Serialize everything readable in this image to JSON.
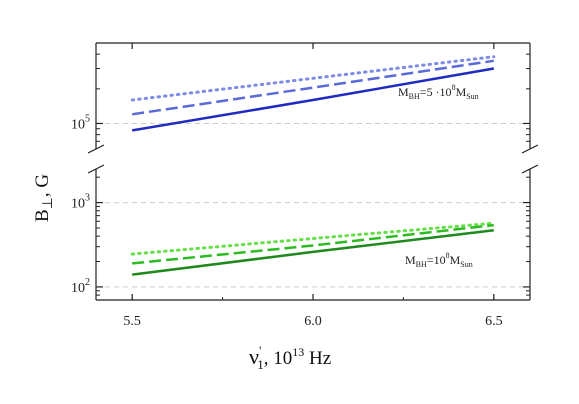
{
  "chart_data": {
    "type": "line",
    "title": "",
    "xlabel": "ν′₁, 10¹³ Hz",
    "xlabel_parts": {
      "main": "ν",
      "prime": "'",
      "sub": "1",
      "rest": ", 10",
      "exp": "13",
      "unit": " Hz"
    },
    "ylabel": "B⊥, G",
    "ylabel_parts": {
      "main": "B",
      "sub": "⊥",
      "rest": ", G"
    },
    "xlim": [
      5.4,
      6.6
    ],
    "x_ticks": [
      {
        "value": 5.5,
        "label": "5.5"
      },
      {
        "value": 6.0,
        "label": "6.0"
      },
      {
        "value": 6.5,
        "label": "6.5"
      }
    ],
    "y_scale": "log",
    "grid": "horizontal dashed at decade ticks",
    "panels": [
      {
        "name": "upper",
        "ylim": [
          60000,
          500000
        ],
        "y_ticks": [
          {
            "value": 100000,
            "base": "10",
            "exp": "5"
          }
        ],
        "annotation": {
          "main": "M",
          "sub1": "BH",
          "mid": "=5 ·10",
          "sup": "8",
          "m2": "M",
          "sub2": "Sun"
        },
        "series": [
          {
            "style": "dotted",
            "color": "#7f8ce6",
            "x": [
              5.5,
              6.0,
              6.5
            ],
            "y": [
              160000,
              247000,
              380000
            ]
          },
          {
            "style": "dashed",
            "color": "#5a6ad8",
            "x": [
              5.5,
              6.0,
              6.5
            ],
            "y": [
              120000,
              205000,
              350000
            ]
          },
          {
            "style": "solid",
            "color": "#1f2ac2",
            "x": [
              5.5,
              6.0,
              6.5
            ],
            "y": [
              87000,
              160000,
              300000
            ]
          }
        ]
      },
      {
        "name": "lower",
        "ylim": [
          70,
          2500
        ],
        "y_ticks": [
          {
            "value": 100,
            "base": "10",
            "exp": "2"
          },
          {
            "value": 1000,
            "base": "10",
            "exp": "3"
          }
        ],
        "annotation": {
          "main": "M",
          "sub1": "BH",
          "mid": "=10",
          "sup": "8",
          "m2": "M",
          "sub2": "Sun"
        },
        "series": [
          {
            "style": "dotted",
            "color": "#66e04a",
            "x": [
              5.5,
              6.0,
              6.5
            ],
            "y": [
              245,
              375,
              570
            ]
          },
          {
            "style": "dashed",
            "color": "#2dbb22",
            "x": [
              5.5,
              6.0,
              6.5
            ],
            "y": [
              190,
              310,
              540
            ]
          },
          {
            "style": "solid",
            "color": "#1e8a1e",
            "x": [
              5.5,
              6.0,
              6.5
            ],
            "y": [
              140,
              260,
              470
            ]
          }
        ]
      }
    ]
  }
}
